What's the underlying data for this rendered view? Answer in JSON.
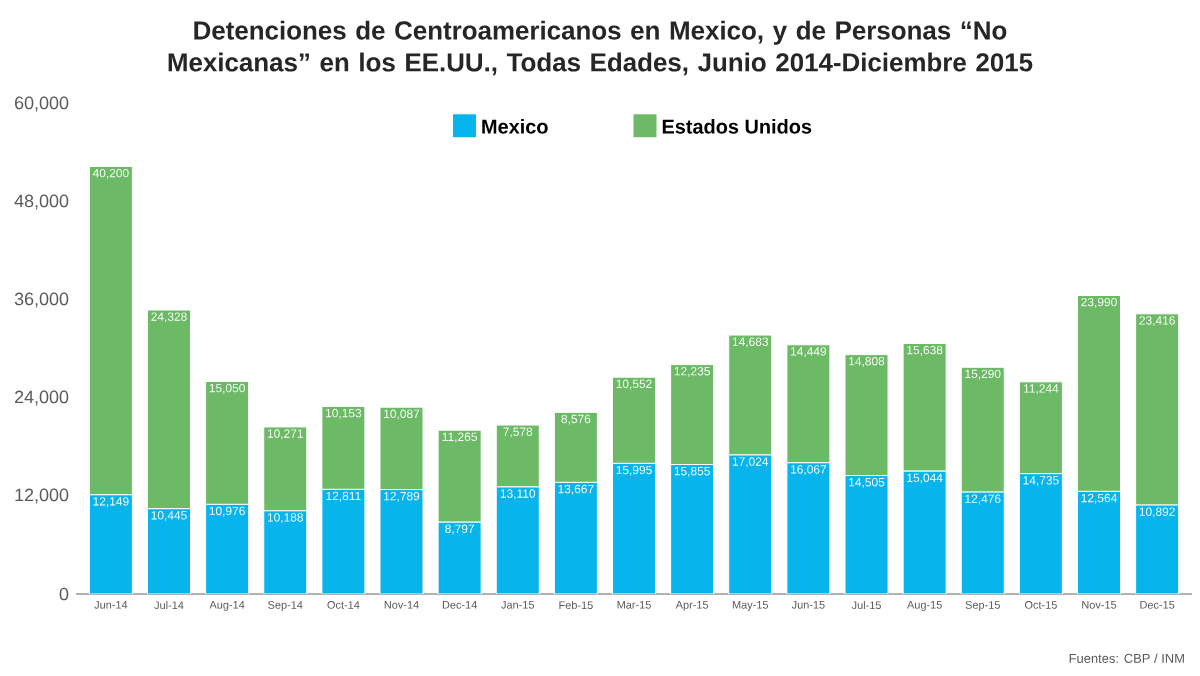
{
  "chart_data": {
    "type": "bar",
    "stacked": true,
    "title": "Detenciones de Centroamericanos en Mexico, y de Personas “No Mexicanas” en los EE.UU., Todas Edades, Junio 2014-Diciembre 2015",
    "categories": [
      "Jun-14",
      "Jul-14",
      "Aug-14",
      "Sep-14",
      "Oct-14",
      "Nov-14",
      "Dec-14",
      "Jan-15",
      "Feb-15",
      "Mar-15",
      "Apr-15",
      "May-15",
      "Jun-15",
      "Jul-15",
      "Aug-15",
      "Sep-15",
      "Oct-15",
      "Nov-15",
      "Dec-15"
    ],
    "series": [
      {
        "name": "Mexico",
        "color": "#08b4ec",
        "values": [
          12149,
          10445,
          10976,
          10188,
          12811,
          12789,
          8797,
          13110,
          13667,
          15995,
          15855,
          17024,
          16067,
          14505,
          15044,
          12476,
          14735,
          12564,
          10892
        ],
        "value_labels": [
          "12,149",
          "10,445",
          "10,976",
          "10,188",
          "12,811",
          "12,789",
          "8,797",
          "13,110",
          "13,667",
          "15,995",
          "15,855",
          "17,024",
          "16,067",
          "14,505",
          "15,044",
          "12,476",
          "14,735",
          "12,564",
          "10,892"
        ]
      },
      {
        "name": "Estados Unidos",
        "color": "#6cba65",
        "values": [
          40200,
          24328,
          15050,
          10271,
          10153,
          10087,
          11265,
          7578,
          8576,
          10552,
          12235,
          14683,
          14449,
          14808,
          15638,
          15290,
          11244,
          23990,
          23416
        ],
        "value_labels": [
          "40,200",
          "24,328",
          "15,050",
          "10,271",
          "10,153",
          "10,087",
          "11,265",
          "7,578",
          "8,576",
          "10,552",
          "12,235",
          "14,683",
          "14,449",
          "14,808",
          "15,638",
          "15,290",
          "11,244",
          "23,990",
          "23,416"
        ]
      }
    ],
    "ylim": [
      0,
      60000
    ],
    "yticks": [
      {
        "value": 0,
        "label": "0"
      },
      {
        "value": 12000,
        "label": "12,000"
      },
      {
        "value": 24000,
        "label": "24,000"
      },
      {
        "value": 36000,
        "label": "36,000"
      },
      {
        "value": 48000,
        "label": "48,000"
      },
      {
        "value": 60000,
        "label": "60,000"
      }
    ],
    "legend": "top",
    "grid": false,
    "annotations": [
      "Fuentes: CBP / INM"
    ]
  }
}
